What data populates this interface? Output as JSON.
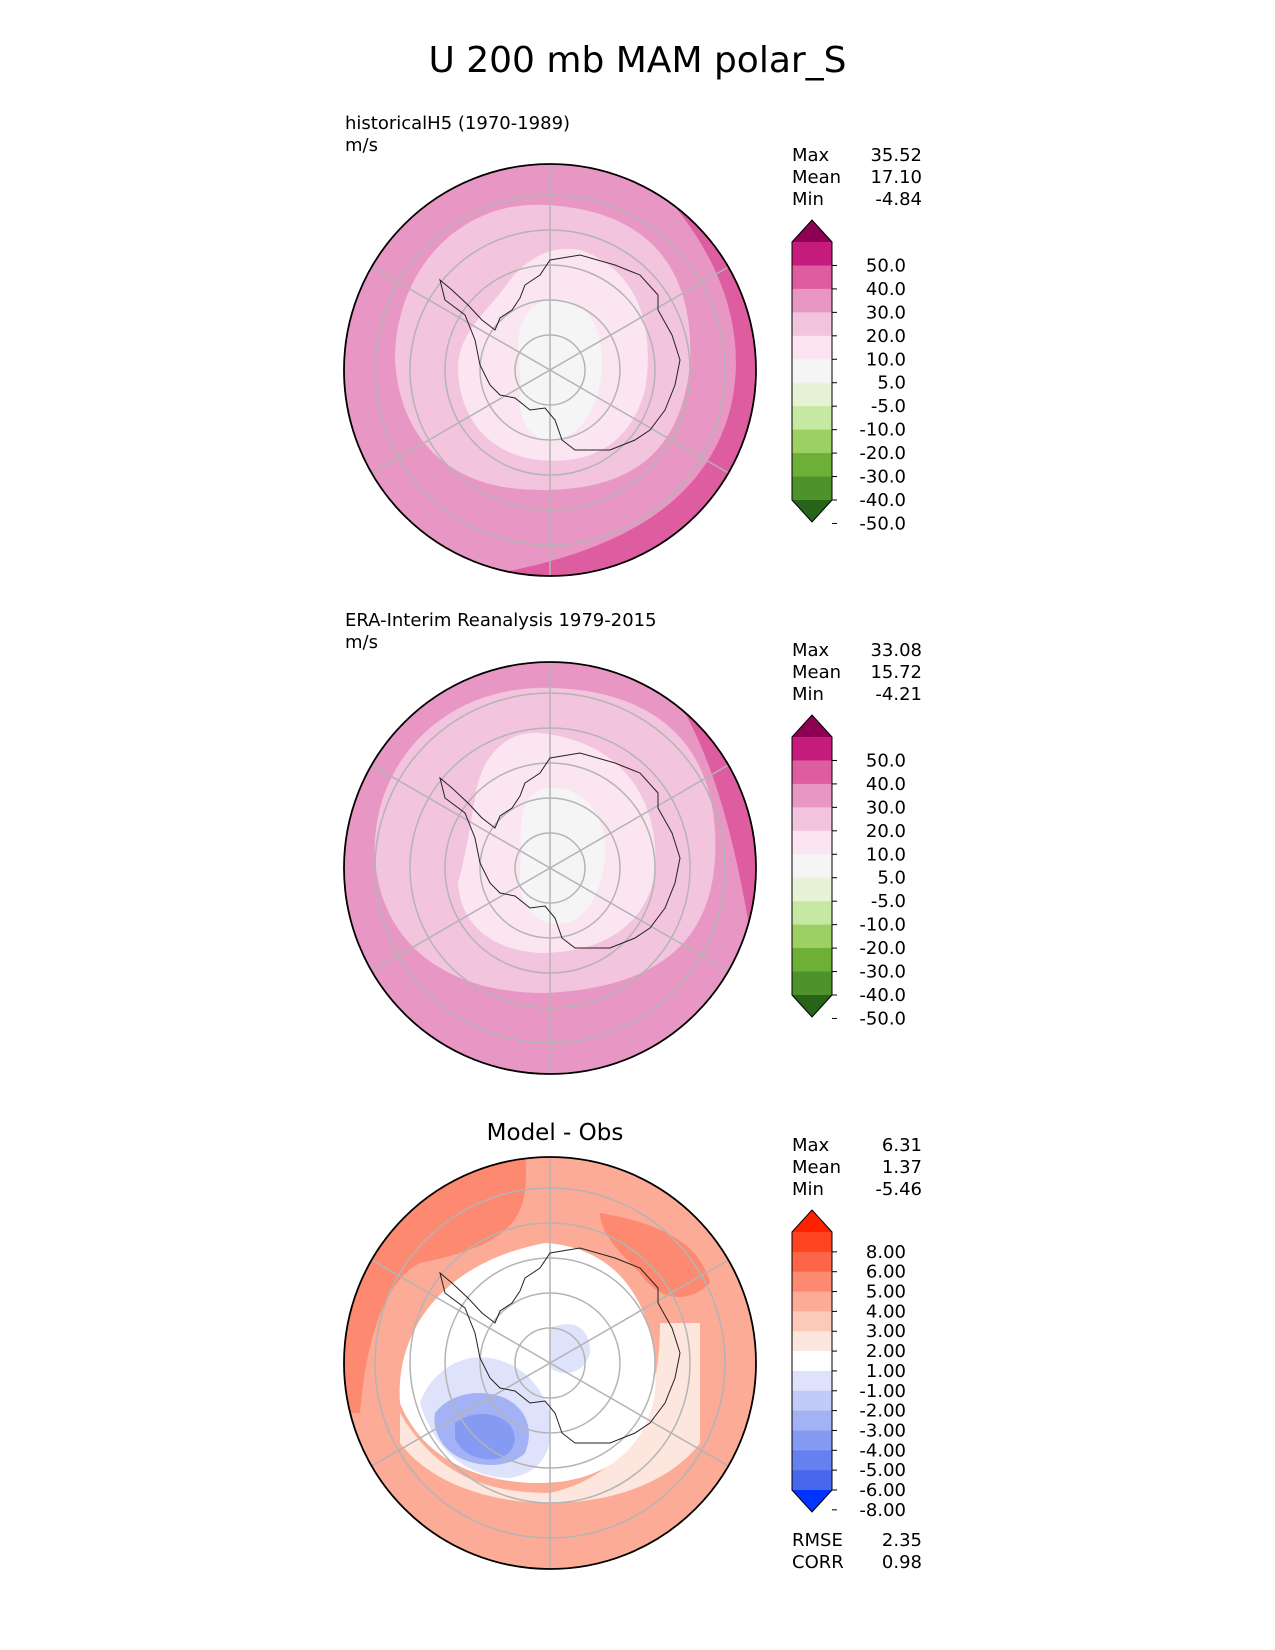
{
  "title": "U 200 mb MAM polar_S",
  "chart_data": [
    {
      "type": "heatmap",
      "projection": "south polar stereographic",
      "title": "historicalH5 (1970-1989)",
      "units": "m/s",
      "stats": [
        {
          "label": "Max",
          "value": "35.52"
        },
        {
          "label": "Mean",
          "value": "17.10"
        },
        {
          "label": "Min",
          "value": "-4.84"
        }
      ],
      "colorbar": {
        "ticks": [
          "50.0",
          "40.0",
          "30.0",
          "20.0",
          "10.0",
          "5.0",
          "-5.0",
          "-10.0",
          "-20.0",
          "-30.0",
          "-40.0",
          "-50.0"
        ],
        "colors": [
          "#8e0152",
          "#c51b7d",
          "#de5ca0",
          "#e897c4",
          "#f3c4de",
          "#fbe5f0",
          "#f5f5f5",
          "#e6f3d4",
          "#c7e8a2",
          "#9dd063",
          "#6eaf38",
          "#4d922b",
          "#276419"
        ]
      }
    },
    {
      "type": "heatmap",
      "projection": "south polar stereographic",
      "title": "ERA-Interim Reanalysis 1979-2015",
      "units": "m/s",
      "stats": [
        {
          "label": "Max",
          "value": "33.08"
        },
        {
          "label": "Mean",
          "value": "15.72"
        },
        {
          "label": "Min",
          "value": "-4.21"
        }
      ],
      "colorbar": {
        "ticks": [
          "50.0",
          "40.0",
          "30.0",
          "20.0",
          "10.0",
          "5.0",
          "-5.0",
          "-10.0",
          "-20.0",
          "-30.0",
          "-40.0",
          "-50.0"
        ],
        "colors": [
          "#8e0152",
          "#c51b7d",
          "#de5ca0",
          "#e897c4",
          "#f3c4de",
          "#fbe5f0",
          "#f5f5f5",
          "#e6f3d4",
          "#c7e8a2",
          "#9dd063",
          "#6eaf38",
          "#4d922b",
          "#276419"
        ]
      }
    },
    {
      "type": "heatmap",
      "projection": "south polar stereographic",
      "title": "Model - Obs",
      "stats": [
        {
          "label": "Max",
          "value": "6.31"
        },
        {
          "label": "Mean",
          "value": "1.37"
        },
        {
          "label": "Min",
          "value": "-5.46"
        }
      ],
      "extra_stats": [
        {
          "label": "RMSE",
          "value": "2.35"
        },
        {
          "label": "CORR",
          "value": "0.98"
        }
      ],
      "colorbar": {
        "ticks": [
          "8.00",
          "6.00",
          "5.00",
          "4.00",
          "3.00",
          "2.00",
          "1.00",
          "-1.00",
          "-2.00",
          "-3.00",
          "-4.00",
          "-5.00",
          "-6.00",
          "-8.00"
        ],
        "colors": [
          "#ff2200",
          "#ff4422",
          "#fd6548",
          "#fc8970",
          "#fcab97",
          "#fdc9b9",
          "#fde6dd",
          "#ffffff",
          "#dee3fb",
          "#c0cbf8",
          "#a3b2f5",
          "#859af2",
          "#6681ef",
          "#4868ec",
          "#0033ff"
        ]
      }
    }
  ]
}
